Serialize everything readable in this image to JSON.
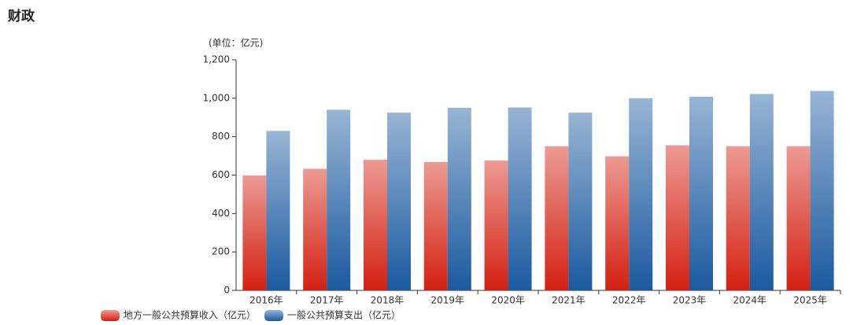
{
  "chart_data": {
    "type": "bar",
    "title": "财政",
    "y_label": "(单位：亿元)",
    "categories": [
      "2016年",
      "2017年",
      "2018年",
      "2019年",
      "2020年",
      "2021年",
      "2022年",
      "2023年",
      "2024年",
      "2025年"
    ],
    "series": [
      {
        "name": "地方一般公共预算收入（亿元）",
        "color": "#d42010",
        "values": [
          598,
          633,
          680,
          668,
          676,
          750,
          698,
          755,
          750,
          750
        ]
      },
      {
        "name": "一般公共预算支出（亿元）",
        "color": "#1a5aa0",
        "values": [
          830,
          940,
          925,
          950,
          952,
          925,
          1000,
          1008,
          1022,
          1038
        ]
      }
    ],
    "ylim": [
      0,
      1200
    ],
    "yticks": [
      0,
      200,
      400,
      600,
      800,
      {
        "value": 1000,
        "label": "1,000"
      },
      {
        "value": 1200,
        "label": "1,200"
      }
    ]
  }
}
